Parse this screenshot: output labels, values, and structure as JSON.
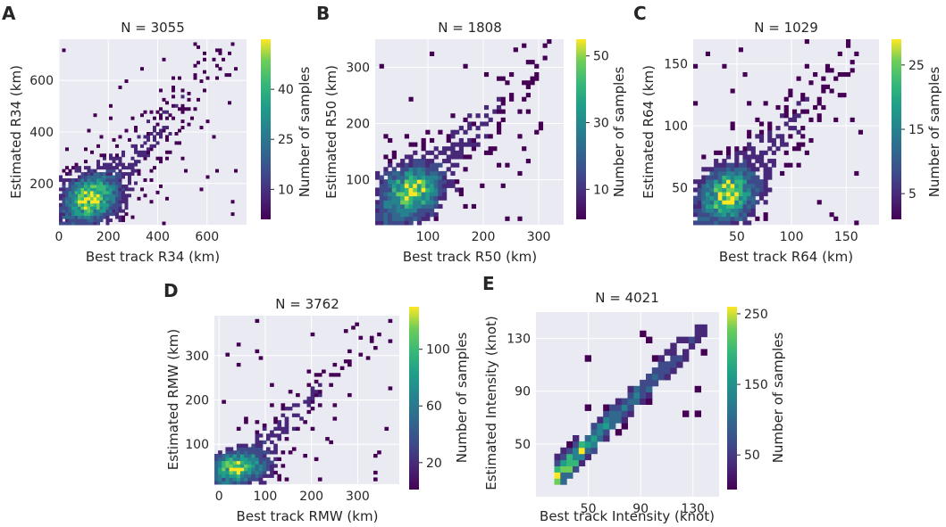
{
  "chart_data": [
    {
      "panel": "A",
      "type": "heatmap",
      "title": "N = 3055",
      "xlabel": "Best track R34 (km)",
      "ylabel": "Estimated R34 (km)",
      "xlim": [
        0,
        760
      ],
      "ylim": [
        40,
        760
      ],
      "xticks": [
        0,
        200,
        400,
        600
      ],
      "yticks": [
        200,
        400,
        600
      ],
      "colorbar": {
        "label": "Number of samples",
        "range": [
          1,
          55
        ],
        "ticks": [
          10,
          25,
          40
        ]
      },
      "cluster": {
        "center": [
          130,
          145
        ],
        "spread": [
          95,
          75
        ],
        "max_x": 720,
        "bins": 60
      }
    },
    {
      "panel": "B",
      "type": "heatmap",
      "title": "N = 1808",
      "xlabel": "Best track R50 (km)",
      "ylabel": "Estimated R50 (km)",
      "xlim": [
        5,
        345
      ],
      "ylim": [
        20,
        350
      ],
      "xticks": [
        100,
        200,
        300
      ],
      "yticks": [
        100,
        200,
        300
      ],
      "colorbar": {
        "label": "Number of samples",
        "range": [
          1,
          55
        ],
        "ticks": [
          10,
          30,
          50
        ]
      },
      "cluster": {
        "center": [
          70,
          80
        ],
        "spread": [
          45,
          38
        ],
        "max_x": 320,
        "bins": 45
      }
    },
    {
      "panel": "C",
      "type": "heatmap",
      "title": "N = 1029",
      "xlabel": "Best track R64 (km)",
      "ylabel": "Estimated R64 (km)",
      "xlim": [
        10,
        180
      ],
      "ylim": [
        20,
        170
      ],
      "xticks": [
        50,
        100,
        150
      ],
      "yticks": [
        50,
        100,
        150
      ],
      "colorbar": {
        "label": "Number of samples",
        "range": [
          1,
          29
        ],
        "ticks": [
          5,
          15,
          25
        ]
      },
      "cluster": {
        "center": [
          42,
          45
        ],
        "spread": [
          22,
          18
        ],
        "max_x": 170,
        "bins": 45
      }
    },
    {
      "panel": "D",
      "type": "heatmap",
      "title": "N = 3762",
      "xlabel": "Best track RMW (km)",
      "ylabel": "Estimated RMW (km)",
      "xlim": [
        -10,
        390
      ],
      "ylim": [
        10,
        390
      ],
      "xticks": [
        0,
        100,
        200,
        300
      ],
      "yticks": [
        100,
        200,
        300
      ],
      "colorbar": {
        "label": "Number of samples",
        "range": [
          1,
          130
        ],
        "ticks": [
          20,
          60,
          100
        ]
      },
      "cluster": {
        "center": [
          40,
          50
        ],
        "spread": [
          55,
          30
        ],
        "max_x": 370,
        "bins": 50
      }
    },
    {
      "panel": "E",
      "type": "heatmap",
      "title": "N = 4021",
      "xlabel": "Best track Intensity (knot)",
      "ylabel": "Estimated Intensity (knot)",
      "xlim": [
        10,
        150
      ],
      "ylim": [
        10,
        150
      ],
      "xticks": [
        50,
        90,
        130
      ],
      "yticks": [
        50,
        90,
        130
      ],
      "colorbar": {
        "label": "Number of samples",
        "range": [
          1,
          260
        ],
        "ticks": [
          50,
          150,
          250
        ]
      },
      "cluster": {
        "center": [
          35,
          35
        ],
        "diagonal": true,
        "max_x": 140,
        "bins": 30
      }
    }
  ]
}
